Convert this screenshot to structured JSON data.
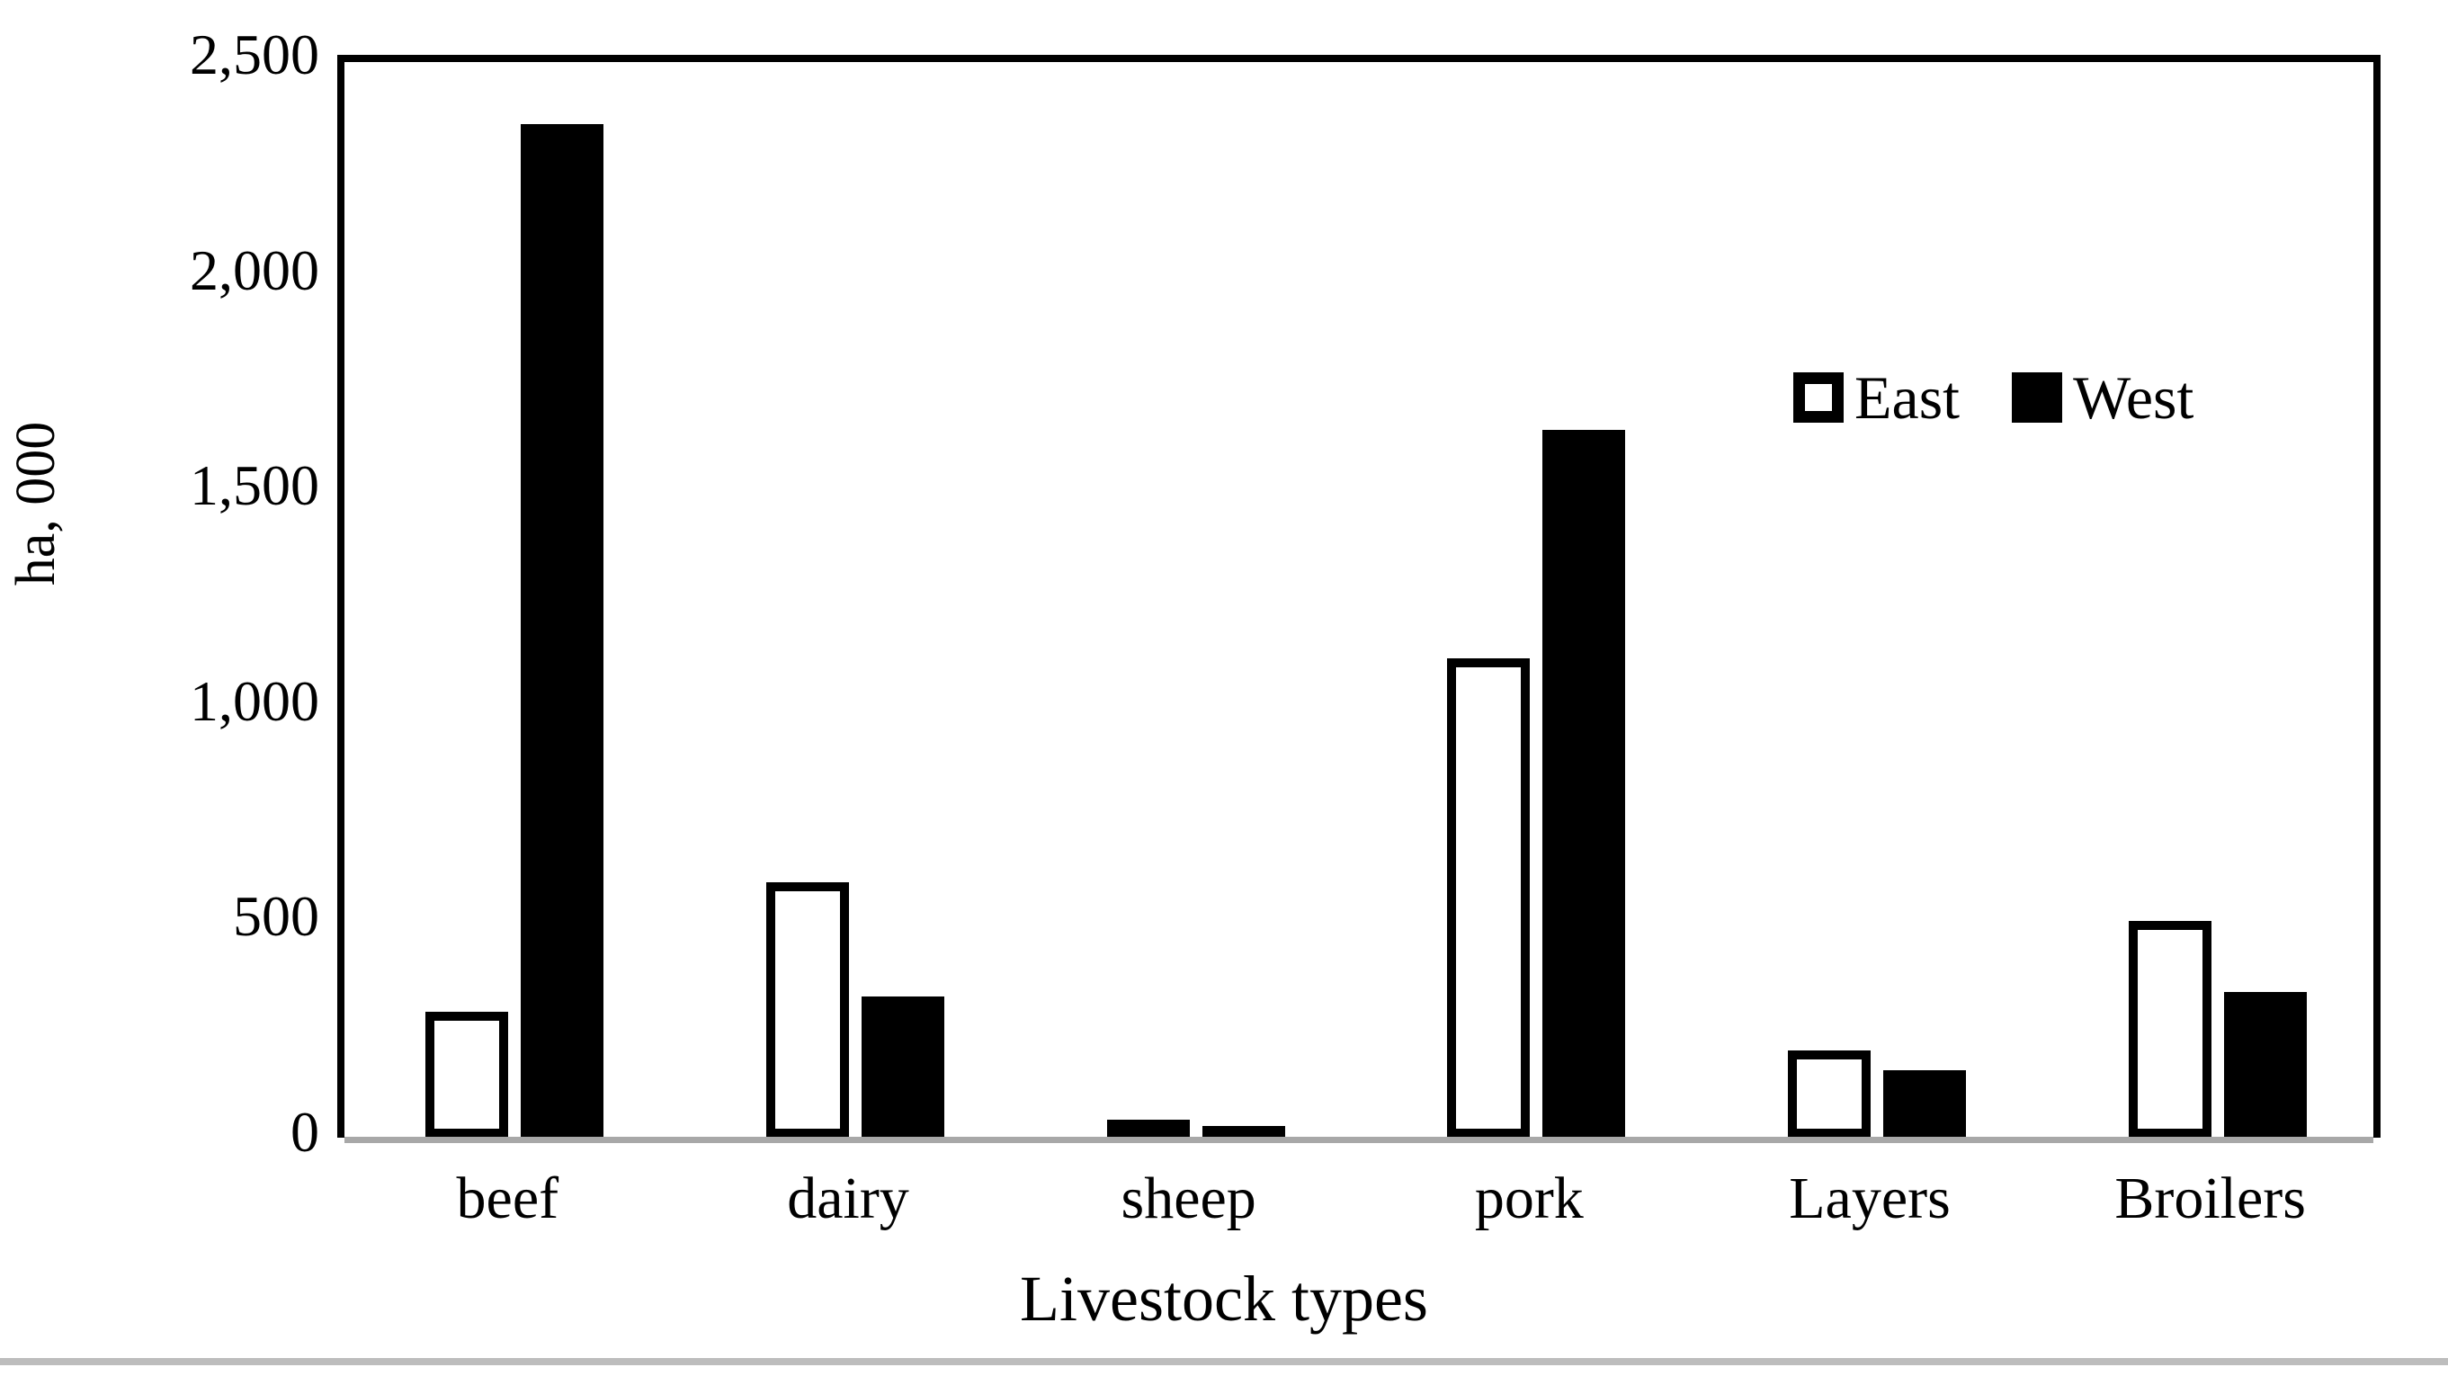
{
  "page": {
    "background": "#ffffff",
    "divider_color": "#bdbdbd"
  },
  "chart_data": {
    "type": "bar",
    "title": "",
    "xlabel": "Livestock types",
    "ylabel": "ha, 000",
    "categories": [
      "beef",
      "dairy",
      "sheep",
      "pork",
      "Layers",
      "Broilers"
    ],
    "series": [
      {
        "name": "East",
        "style": "outlined",
        "fill": "#ffffff",
        "border": "#000000",
        "values": [
          280,
          580,
          15,
          1100,
          190,
          490
        ]
      },
      {
        "name": "West",
        "style": "solid",
        "fill": "#000000",
        "values": [
          2340,
          315,
          15,
          1630,
          145,
          325
        ]
      }
    ],
    "ylim": [
      0,
      2500
    ],
    "ytick_step": 500,
    "yticks": [
      {
        "value": 0,
        "label": "0"
      },
      {
        "value": 500,
        "label": "500"
      },
      {
        "value": 1000,
        "label": "1,000"
      },
      {
        "value": 1500,
        "label": "1,500"
      },
      {
        "value": 2000,
        "label": "2,000"
      },
      {
        "value": 2500,
        "label": "2,500"
      }
    ],
    "grid": false,
    "legend_position": "inside-top-right",
    "axis_color": "#000000",
    "baseline_color": "#a8a8a8"
  }
}
